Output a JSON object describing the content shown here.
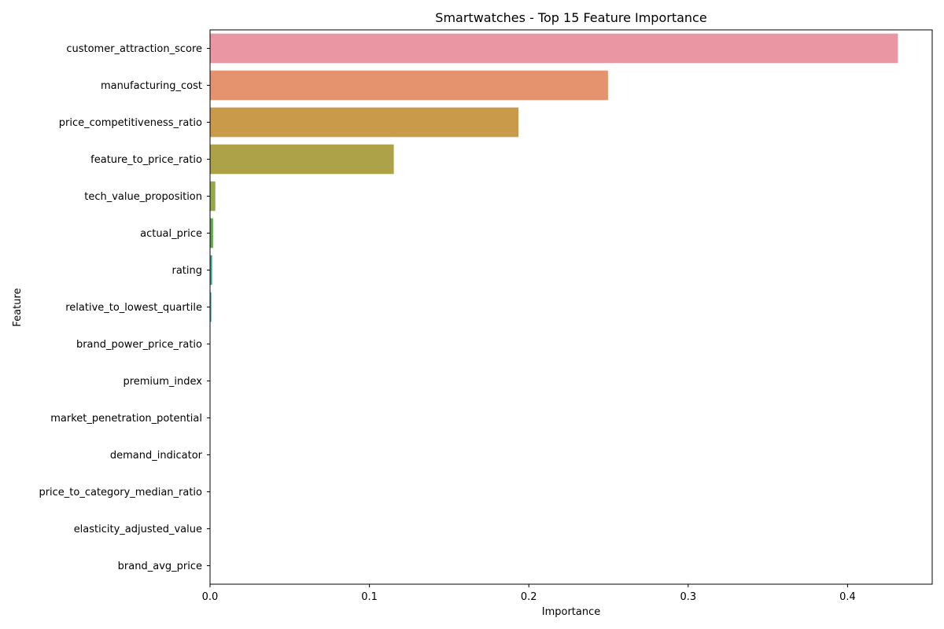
{
  "chart_data": {
    "type": "bar",
    "orientation": "horizontal",
    "title": "Smartwatches - Top 15 Feature Importance",
    "xlabel": "Importance",
    "ylabel": "Feature",
    "xlim": [
      0,
      0.4531
    ],
    "xticks": [
      0.0,
      0.1,
      0.2,
      0.3,
      0.4
    ],
    "xtick_labels": [
      "0.0",
      "0.1",
      "0.2",
      "0.3",
      "0.4"
    ],
    "grid": false,
    "legend": false,
    "categories": [
      "customer_attraction_score",
      "manufacturing_cost",
      "price_competitiveness_ratio",
      "feature_to_price_ratio",
      "tech_value_proposition",
      "actual_price",
      "rating",
      "relative_to_lowest_quartile",
      "brand_power_price_ratio",
      "premium_index",
      "market_penetration_potential",
      "demand_indicator",
      "price_to_category_median_ratio",
      "elasticity_adjusted_value",
      "brand_avg_price"
    ],
    "values": [
      0.4316,
      0.2497,
      0.1935,
      0.1153,
      0.0033,
      0.0019,
      0.0013,
      0.0008,
      0.0002,
      0.0001,
      0.0001,
      0.0001,
      0.0001,
      0.0001,
      0.0001
    ],
    "colors": [
      "#ea96a3",
      "#e5936f",
      "#c89a49",
      "#ada248",
      "#96a948",
      "#5ca84c",
      "#38a78e",
      "#39a69d",
      "#3aa5b0",
      "#3ba3c4",
      "#56a0e1",
      "#a28fe9",
      "#cf88e2",
      "#e88bcc",
      "#ea8fb4"
    ]
  }
}
